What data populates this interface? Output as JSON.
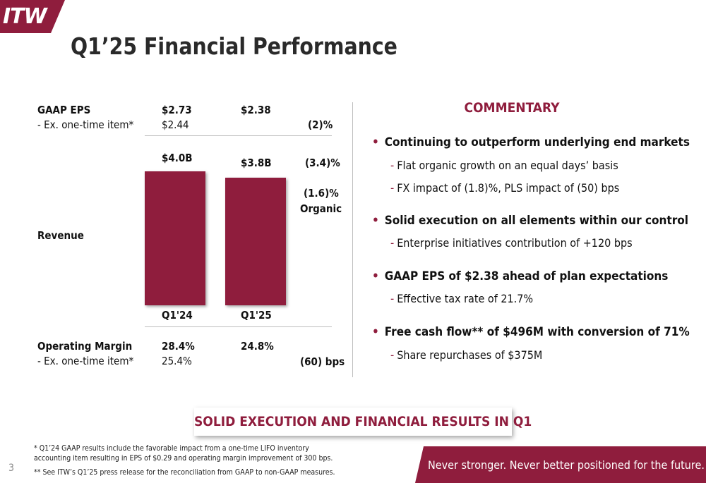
{
  "header": {
    "logo_text": "ITW",
    "title": "Q1’25 Financial Performance"
  },
  "colors": {
    "accent": "#8f1d3d",
    "divider": "#bdbdbd",
    "text": "#111111"
  },
  "metrics": {
    "gaap_eps": {
      "label": "GAAP EPS",
      "q124": "$2.73",
      "q125": "$2.38",
      "sub_label": "- Ex. one-time item*",
      "sub_q124": "$2.44",
      "change": "(2)%"
    },
    "revenue": {
      "label": "Revenue",
      "q124_value": "$4.0B",
      "q125_value": "$3.8B",
      "change": "(3.4)%",
      "organic_change": "(1.6)%",
      "organic_label": "Organic"
    },
    "operating_margin": {
      "label": "Operating Margin",
      "q124": "28.4%",
      "q125": "24.8%",
      "sub_label": "- Ex. one-time item*",
      "sub_q124": "25.4%",
      "change": "(60) bps"
    }
  },
  "chart_data": {
    "type": "bar",
    "categories": [
      "Q1'24",
      "Q1'25"
    ],
    "values": [
      4.0,
      3.8
    ],
    "value_labels": [
      "$4.0B",
      "$3.8B"
    ],
    "ylabel": "Revenue",
    "ylim": [
      0,
      4.0
    ]
  },
  "commentary": {
    "heading": "COMMENTARY",
    "bullets": [
      {
        "text": "Continuing to outperform underlying end markets",
        "subs": [
          "Flat organic growth on an equal days’ basis",
          "FX impact of (1.8)%, PLS impact of (50) bps"
        ]
      },
      {
        "text": "Solid execution on all elements within our control",
        "subs": [
          "Enterprise initiatives contribution of +120 bps"
        ]
      },
      {
        "text": "GAAP EPS of $2.38 ahead of plan expectations",
        "subs": [
          "Effective tax rate of 21.7%"
        ]
      },
      {
        "text": "Free cash flow** of $496M with conversion of 71%",
        "subs": [
          "Share repurchases of $375M"
        ]
      }
    ]
  },
  "banner": "SOLID EXECUTION AND FINANCIAL RESULTS IN Q1",
  "footnotes": {
    "note1_line1": "* Q1’24 GAAP results include the favorable impact from a one-time LIFO inventory",
    "note1_line2": "accounting item resulting in EPS of $0.29 and operating margin improvement of 300 bps.",
    "note2": "** See ITW’s Q1’25 press release for the reconciliation from GAAP to non-GAAP measures."
  },
  "page_number": "3",
  "tagline": "Never stronger. Never better positioned for the future."
}
